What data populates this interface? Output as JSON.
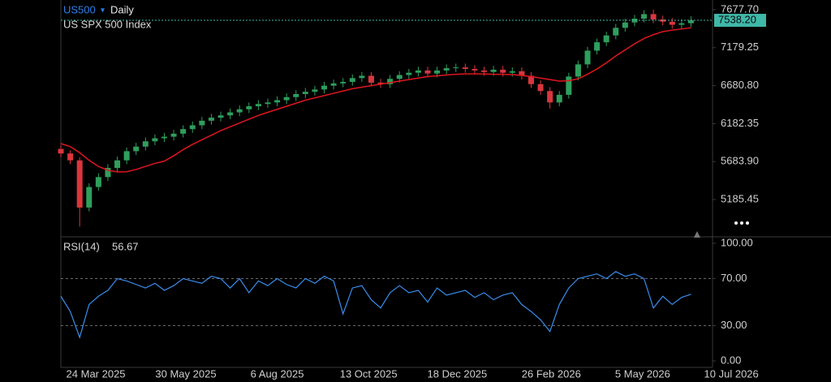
{
  "chart_data": [
    {
      "type": "candlestick",
      "title": "US500",
      "subtitle": "Daily",
      "description": "US SPX 500 Index",
      "x": [
        "2025-02-26",
        "2025-03-05",
        "2025-03-12",
        "2025-03-19",
        "2025-03-26",
        "2025-04-02",
        "2025-04-09",
        "2025-04-16",
        "2025-04-23",
        "2025-04-30",
        "2025-05-07",
        "2025-05-14",
        "2025-05-21",
        "2025-05-28",
        "2025-06-04",
        "2025-06-11",
        "2025-06-18",
        "2025-06-25",
        "2025-07-02",
        "2025-07-09",
        "2025-07-16",
        "2025-07-23",
        "2025-07-30",
        "2025-08-06",
        "2025-08-13",
        "2025-08-20",
        "2025-08-27",
        "2025-09-03",
        "2025-09-10",
        "2025-09-17",
        "2025-09-24",
        "2025-10-01",
        "2025-10-08",
        "2025-10-15",
        "2025-10-22",
        "2025-10-29",
        "2025-11-05",
        "2025-11-12",
        "2025-11-19",
        "2025-11-26",
        "2025-12-03",
        "2025-12-10",
        "2025-12-17",
        "2025-12-24",
        "2025-12-31",
        "2026-01-07",
        "2026-01-14",
        "2026-01-21",
        "2026-01-28",
        "2026-02-04",
        "2026-02-11",
        "2026-02-18",
        "2026-02-25",
        "2026-03-04",
        "2026-03-11",
        "2026-03-18",
        "2026-03-25",
        "2026-04-01",
        "2026-04-08",
        "2026-04-15",
        "2026-04-22",
        "2026-04-29",
        "2026-05-06",
        "2026-05-13",
        "2026-05-20",
        "2026-05-27",
        "2026-06-03",
        "2026-06-10"
      ],
      "open": [
        5850,
        5790,
        5700,
        5080,
        5350,
        5480,
        5600,
        5700,
        5820,
        5880,
        5950,
        5990,
        6010,
        6050,
        6110,
        6160,
        6220,
        6260,
        6290,
        6330,
        6370,
        6410,
        6440,
        6460,
        6490,
        6530,
        6570,
        6600,
        6630,
        6680,
        6710,
        6730,
        6780,
        6810,
        6720,
        6700,
        6770,
        6820,
        6850,
        6880,
        6840,
        6880,
        6910,
        6920,
        6900,
        6880,
        6860,
        6890,
        6850,
        6870,
        6810,
        6700,
        6610,
        6460,
        6560,
        6800,
        6960,
        7140,
        7250,
        7340,
        7440,
        7510,
        7560,
        7620,
        7550,
        7520,
        7480,
        7500
      ],
      "high": [
        5900,
        5830,
        5740,
        5400,
        5530,
        5650,
        5750,
        5870,
        5930,
        6000,
        6040,
        6060,
        6100,
        6160,
        6210,
        6270,
        6310,
        6340,
        6380,
        6420,
        6460,
        6490,
        6510,
        6540,
        6580,
        6620,
        6650,
        6680,
        6730,
        6760,
        6780,
        6830,
        6860,
        6860,
        6770,
        6820,
        6870,
        6900,
        6930,
        6930,
        6930,
        6960,
        6970,
        6970,
        6950,
        6930,
        6940,
        6940,
        6920,
        6920,
        6860,
        6750,
        6660,
        6610,
        6850,
        7010,
        7190,
        7300,
        7390,
        7490,
        7560,
        7610,
        7670,
        7680,
        7600,
        7570,
        7550,
        7590
      ],
      "low": [
        5740,
        5650,
        4830,
        5030,
        5300,
        5430,
        5550,
        5650,
        5770,
        5830,
        5900,
        5940,
        5960,
        6000,
        6060,
        6110,
        6170,
        6210,
        6240,
        6280,
        6320,
        6360,
        6390,
        6410,
        6440,
        6480,
        6520,
        6550,
        6580,
        6630,
        6660,
        6680,
        6730,
        6670,
        6650,
        6650,
        6720,
        6770,
        6800,
        6790,
        6790,
        6830,
        6860,
        6850,
        6830,
        6810,
        6810,
        6800,
        6800,
        6760,
        6650,
        6560,
        6380,
        6410,
        6510,
        6750,
        6910,
        7090,
        7200,
        7290,
        7390,
        7460,
        7510,
        7500,
        7470,
        7430,
        7430,
        7450
      ],
      "close": [
        5790,
        5700,
        5080,
        5350,
        5480,
        5600,
        5700,
        5820,
        5880,
        5950,
        5990,
        6010,
        6050,
        6110,
        6160,
        6220,
        6260,
        6290,
        6330,
        6370,
        6410,
        6440,
        6460,
        6490,
        6530,
        6570,
        6600,
        6630,
        6680,
        6710,
        6730,
        6780,
        6810,
        6720,
        6700,
        6770,
        6820,
        6850,
        6880,
        6840,
        6880,
        6910,
        6920,
        6900,
        6880,
        6860,
        6890,
        6850,
        6870,
        6810,
        6700,
        6610,
        6460,
        6560,
        6800,
        6960,
        7140,
        7250,
        7340,
        7440,
        7510,
        7560,
        7620,
        7550,
        7520,
        7480,
        7500,
        7538.2
      ],
      "up_color": "#2f9e5c",
      "down_color": "#d9363e",
      "overlay": {
        "type": "line",
        "color": "#e0161e",
        "values": [
          5920,
          5880,
          5800,
          5700,
          5620,
          5570,
          5548,
          5550,
          5580,
          5620,
          5660,
          5690,
          5760,
          5840,
          5910,
          5970,
          6030,
          6090,
          6140,
          6190,
          6240,
          6290,
          6330,
          6370,
          6410,
          6450,
          6490,
          6520,
          6550,
          6580,
          6610,
          6640,
          6660,
          6680,
          6700,
          6720,
          6740,
          6760,
          6780,
          6800,
          6810,
          6820,
          6830,
          6835,
          6835,
          6835,
          6830,
          6830,
          6825,
          6815,
          6800,
          6780,
          6760,
          6740,
          6745,
          6770,
          6830,
          6900,
          6980,
          7070,
          7150,
          7230,
          7300,
          7350,
          7390,
          7410,
          7425,
          7440
        ]
      },
      "last_price": {
        "value": 7538.2,
        "label": "7538.20"
      },
      "last_price_color": "#3fb8a8",
      "xlim": [
        "2025-02-26",
        "2026-06-26"
      ],
      "xticks": [
        {
          "value": "2025-03-24",
          "label": "24 Mar 2025"
        },
        {
          "value": "2025-05-30",
          "label": "30 May 2025"
        },
        {
          "value": "2025-08-06",
          "label": "6 Aug 2025"
        },
        {
          "value": "2025-10-13",
          "label": "13 Oct 2025"
        },
        {
          "value": "2025-12-18",
          "label": "18 Dec 2025"
        },
        {
          "value": "2026-02-26",
          "label": "26 Feb 2026"
        },
        {
          "value": "2026-05-05",
          "label": "5 May 2026"
        },
        {
          "value": "2026-07-10",
          "label": "10 Jul 2026"
        }
      ],
      "ylim": [
        4717,
        7805
      ],
      "yticks": [
        {
          "value": 7677.7,
          "label": "7677.70"
        },
        7179.25,
        {
          "value": 6680.8,
          "label": "6680.80"
        },
        6182.35,
        {
          "value": 5683.9,
          "label": "5683.90"
        },
        5185.45
      ],
      "grid": false
    },
    {
      "type": "line",
      "title": "RSI(14)",
      "current": 56.67,
      "color": "#3a8eef",
      "values": [
        55,
        42,
        20,
        48,
        55,
        60,
        70,
        68,
        65,
        62,
        66,
        60,
        64,
        70,
        68,
        66,
        72,
        70,
        62,
        70,
        58,
        68,
        64,
        70,
        65,
        62,
        70,
        66,
        72,
        68,
        40,
        62,
        64,
        52,
        45,
        58,
        64,
        58,
        60,
        50,
        62,
        56,
        58,
        60,
        54,
        58,
        52,
        56,
        58,
        48,
        42,
        35,
        25,
        48,
        62,
        70,
        72,
        74,
        70,
        76,
        72,
        74,
        70,
        45,
        55,
        48,
        54,
        56.67
      ],
      "ylim": [
        0,
        100
      ],
      "yticks": [
        {
          "value": 100,
          "label": "100.00"
        },
        {
          "value": 70,
          "label": "70.00"
        },
        {
          "value": 30,
          "label": "30.00"
        },
        {
          "value": 0,
          "label": "0.00"
        }
      ],
      "grid": true
    }
  ]
}
